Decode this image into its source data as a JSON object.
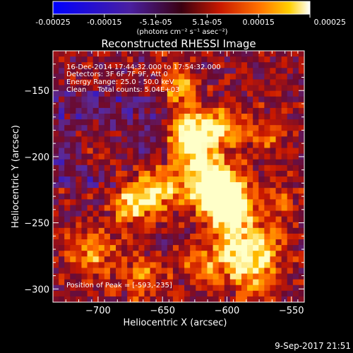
{
  "colorbar": {
    "ticks": [
      "-0.00025",
      "-0.00015",
      "-5.1e-05",
      "5.1e-05",
      "0.00015",
      "0.00025"
    ],
    "unit_label": "(photons cm⁻² s⁻¹ asec⁻²)",
    "range": [
      -0.00025,
      0.00025
    ]
  },
  "chart_data": {
    "type": "heatmap",
    "title": "Reconstructed RHESSI Image",
    "xlabel": "Heliocentric X (arcsec)",
    "ylabel": "Heliocentric Y (arcsec)",
    "xlim": [
      -735,
      -540
    ],
    "ylim": [
      -310,
      -120
    ],
    "x_ticks": [
      -700,
      -650,
      -600,
      -550
    ],
    "y_ticks": [
      -300,
      -250,
      -200,
      -150
    ],
    "x_tick_labels": [
      "−700",
      "−650",
      "−600",
      "−550"
    ],
    "y_tick_labels": [
      "−300",
      "−250",
      "−200",
      "−150"
    ],
    "annotations": [
      "16-Dec-2014 17:44:32.000 to 17:54:32.000",
      "Detectors: 3F 6F 7F 9F, Att 0",
      "Energy Range: 25.0 - 50.0 keV",
      "Clean     Total counts: 5.04E+03"
    ],
    "peak_label": "Position of Peak = [-593,-235]",
    "peak": [
      -593,
      -235
    ],
    "colormap": [
      "#0000ff",
      "#5a2a9a",
      "#6a0a30",
      "#c81800",
      "#ff6a00",
      "#ffc000",
      "#ffffc8"
    ]
  },
  "footer": {
    "timestamp": "9-Sep-2017 21:51"
  }
}
